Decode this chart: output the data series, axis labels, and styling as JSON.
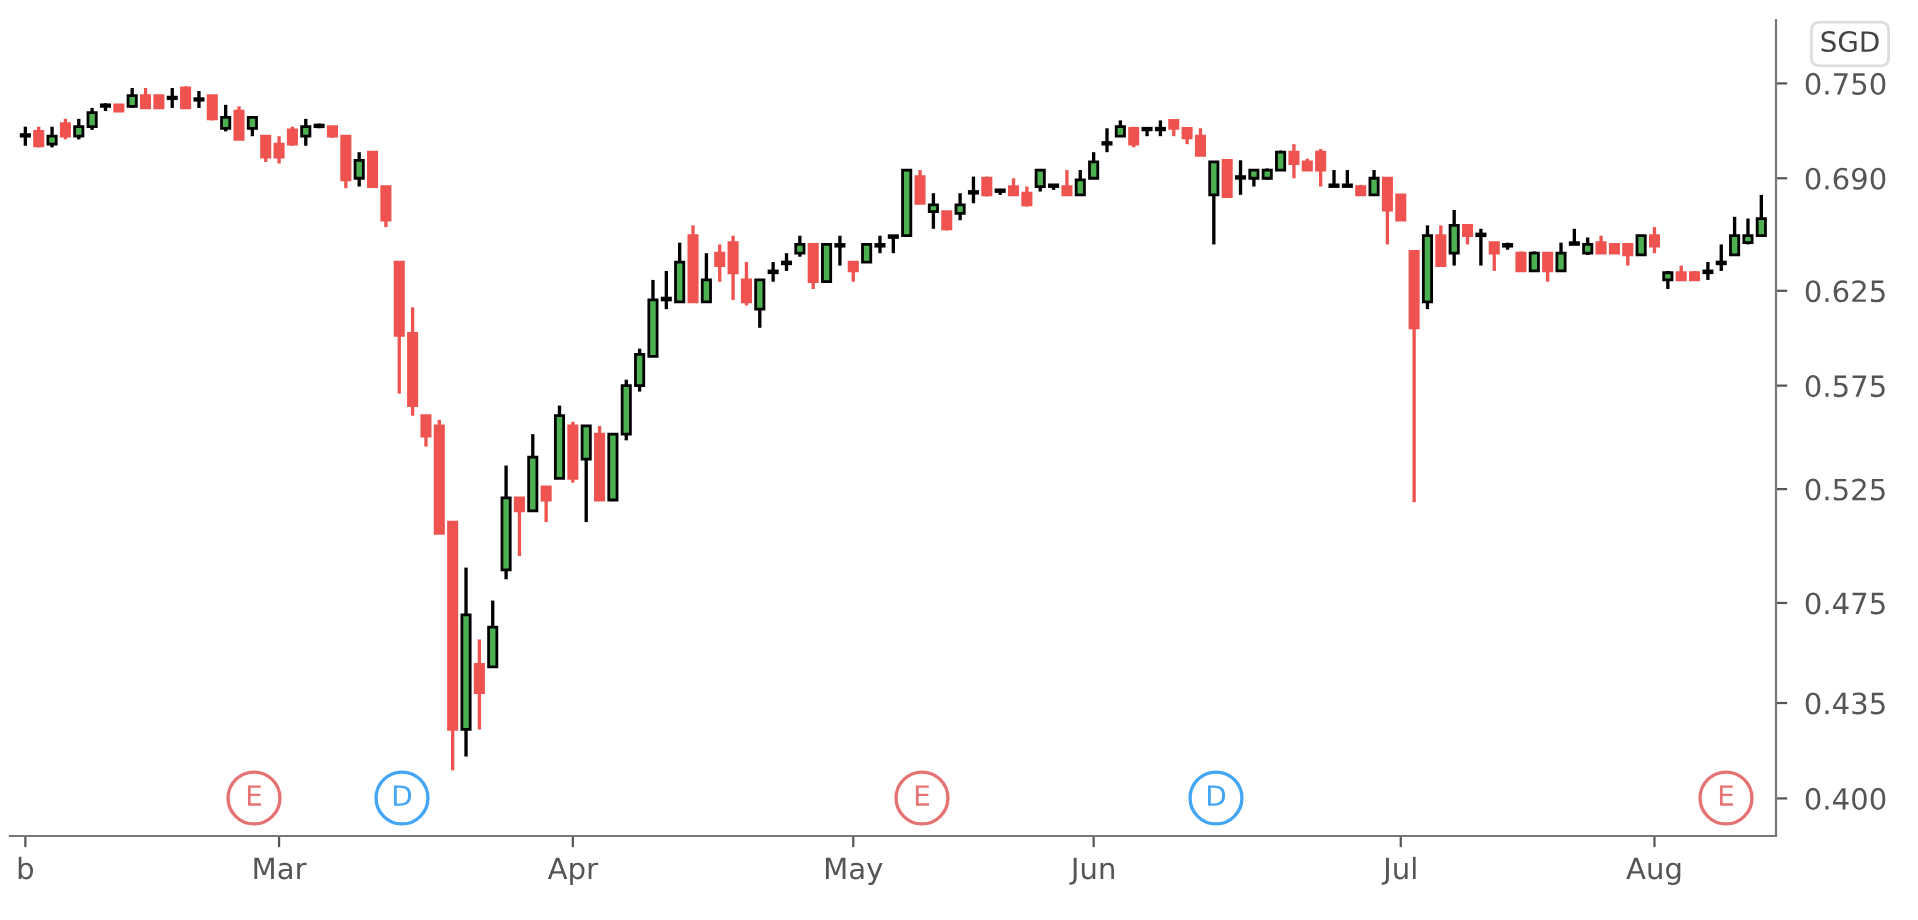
{
  "chart_data": {
    "type": "candlestick",
    "categories": [
      "b",
      null,
      null,
      null,
      null,
      null,
      null,
      null,
      null,
      null,
      null,
      null,
      null,
      null,
      null,
      null,
      null,
      null,
      null,
      "Mar",
      null,
      null,
      null,
      null,
      null,
      null,
      null,
      null,
      null,
      null,
      null,
      null,
      null,
      null,
      null,
      null,
      null,
      null,
      null,
      null,
      null,
      "Apr",
      null,
      null,
      null,
      null,
      null,
      null,
      null,
      null,
      null,
      null,
      null,
      null,
      null,
      null,
      null,
      null,
      null,
      null,
      null,
      null,
      "May",
      null,
      null,
      null,
      null,
      null,
      null,
      null,
      null,
      null,
      null,
      null,
      null,
      null,
      null,
      null,
      null,
      null,
      "Jun",
      null,
      null,
      null,
      null,
      null,
      null,
      null,
      null,
      null,
      null,
      null,
      null,
      null,
      null,
      null,
      null,
      null,
      null,
      null,
      null,
      null,
      null,
      "Jul",
      null,
      null,
      null,
      null,
      null,
      null,
      null,
      null,
      null,
      null,
      null,
      null,
      null,
      null,
      null,
      null,
      null,
      null,
      "Aug",
      null,
      null,
      null,
      null,
      null,
      null,
      null,
      null
    ],
    "ohlc": [
      [
        0.716,
        0.722,
        0.71,
        0.717
      ],
      [
        0.719,
        0.722,
        0.709,
        0.71
      ],
      [
        0.711,
        0.722,
        0.709,
        0.716
      ],
      [
        0.724,
        0.727,
        0.714,
        0.716
      ],
      [
        0.716,
        0.727,
        0.714,
        0.722
      ],
      [
        0.722,
        0.734,
        0.72,
        0.731
      ],
      [
        0.735,
        0.737,
        0.732,
        0.736
      ],
      [
        0.736,
        0.736,
        0.732,
        0.732
      ],
      [
        0.735,
        0.747,
        0.734,
        0.742
      ],
      [
        0.742,
        0.747,
        0.734,
        0.734
      ],
      [
        0.742,
        0.742,
        0.734,
        0.734
      ],
      [
        0.74,
        0.747,
        0.734,
        0.741
      ],
      [
        0.747,
        0.748,
        0.734,
        0.734
      ],
      [
        0.739,
        0.745,
        0.734,
        0.74
      ],
      [
        0.742,
        0.742,
        0.726,
        0.727
      ],
      [
        0.721,
        0.736,
        0.719,
        0.728
      ],
      [
        0.732,
        0.735,
        0.714,
        0.714
      ],
      [
        0.721,
        0.728,
        0.716,
        0.728
      ],
      [
        0.716,
        0.716,
        0.7,
        0.703
      ],
      [
        0.711,
        0.716,
        0.699,
        0.703
      ],
      [
        0.72,
        0.722,
        0.71,
        0.711
      ],
      [
        0.716,
        0.727,
        0.71,
        0.722
      ],
      [
        0.722,
        0.724,
        0.721,
        0.723
      ],
      [
        0.722,
        0.722,
        0.715,
        0.716
      ],
      [
        0.716,
        0.716,
        0.684,
        0.689
      ],
      [
        0.69,
        0.706,
        0.685,
        0.701
      ],
      [
        0.706,
        0.706,
        0.685,
        0.685
      ],
      [
        0.685,
        0.685,
        0.661,
        0.665
      ],
      [
        0.641,
        0.641,
        0.571,
        0.601
      ],
      [
        0.602,
        0.616,
        0.56,
        0.565
      ],
      [
        0.56,
        0.56,
        0.545,
        0.55
      ],
      [
        0.555,
        0.558,
        0.505,
        0.505
      ],
      [
        0.51,
        0.51,
        0.41,
        0.425
      ],
      [
        0.425,
        0.49,
        0.415,
        0.47
      ],
      [
        0.45,
        0.46,
        0.425,
        0.439
      ],
      [
        0.449,
        0.476,
        0.449,
        0.465
      ],
      [
        0.489,
        0.536,
        0.485,
        0.521
      ],
      [
        0.521,
        0.521,
        0.495,
        0.515
      ],
      [
        0.515,
        0.551,
        0.515,
        0.54
      ],
      [
        0.526,
        0.526,
        0.51,
        0.52
      ],
      [
        0.53,
        0.565,
        0.53,
        0.56
      ],
      [
        0.555,
        0.557,
        0.528,
        0.53
      ],
      [
        0.539,
        0.555,
        0.51,
        0.555
      ],
      [
        0.551,
        0.555,
        0.52,
        0.52
      ],
      [
        0.52,
        0.551,
        0.52,
        0.551
      ],
      [
        0.551,
        0.578,
        0.548,
        0.575
      ],
      [
        0.575,
        0.594,
        0.572,
        0.591
      ],
      [
        0.59,
        0.631,
        0.59,
        0.62
      ],
      [
        0.62,
        0.636,
        0.615,
        0.621
      ],
      [
        0.619,
        0.652,
        0.619,
        0.641
      ],
      [
        0.656,
        0.662,
        0.619,
        0.619
      ],
      [
        0.619,
        0.646,
        0.619,
        0.631
      ],
      [
        0.646,
        0.651,
        0.63,
        0.639
      ],
      [
        0.652,
        0.656,
        0.62,
        0.635
      ],
      [
        0.631,
        0.641,
        0.617,
        0.619
      ],
      [
        0.615,
        0.631,
        0.605,
        0.631
      ],
      [
        0.635,
        0.641,
        0.63,
        0.636
      ],
      [
        0.64,
        0.646,
        0.636,
        0.641
      ],
      [
        0.646,
        0.656,
        0.644,
        0.651
      ],
      [
        0.651,
        0.651,
        0.626,
        0.63
      ],
      [
        0.63,
        0.651,
        0.63,
        0.651
      ],
      [
        0.65,
        0.656,
        0.639,
        0.651
      ],
      [
        0.641,
        0.641,
        0.63,
        0.636
      ],
      [
        0.641,
        0.651,
        0.641,
        0.651
      ],
      [
        0.65,
        0.656,
        0.646,
        0.651
      ],
      [
        0.655,
        0.656,
        0.646,
        0.656
      ],
      [
        0.656,
        0.695,
        0.656,
        0.695
      ],
      [
        0.691,
        0.695,
        0.675,
        0.675
      ],
      [
        0.67,
        0.681,
        0.66,
        0.674
      ],
      [
        0.67,
        0.67,
        0.659,
        0.66
      ],
      [
        0.669,
        0.681,
        0.665,
        0.674
      ],
      [
        0.681,
        0.691,
        0.675,
        0.682
      ],
      [
        0.69,
        0.691,
        0.679,
        0.68
      ],
      [
        0.682,
        0.683,
        0.68,
        0.683
      ],
      [
        0.685,
        0.69,
        0.68,
        0.68
      ],
      [
        0.681,
        0.685,
        0.673,
        0.674
      ],
      [
        0.685,
        0.695,
        0.682,
        0.695
      ],
      [
        0.685,
        0.686,
        0.683,
        0.686
      ],
      [
        0.685,
        0.695,
        0.68,
        0.68
      ],
      [
        0.68,
        0.695,
        0.68,
        0.689
      ],
      [
        0.69,
        0.706,
        0.69,
        0.7
      ],
      [
        0.711,
        0.721,
        0.706,
        0.712
      ],
      [
        0.716,
        0.726,
        0.716,
        0.722
      ],
      [
        0.721,
        0.722,
        0.709,
        0.711
      ],
      [
        0.72,
        0.721,
        0.716,
        0.721
      ],
      [
        0.72,
        0.726,
        0.716,
        0.721
      ],
      [
        0.726,
        0.726,
        0.716,
        0.721
      ],
      [
        0.721,
        0.721,
        0.711,
        0.715
      ],
      [
        0.716,
        0.721,
        0.704,
        0.704
      ],
      [
        0.68,
        0.7,
        0.651,
        0.7
      ],
      [
        0.701,
        0.701,
        0.679,
        0.679
      ],
      [
        0.69,
        0.701,
        0.68,
        0.691
      ],
      [
        0.69,
        0.695,
        0.685,
        0.695
      ],
      [
        0.69,
        0.696,
        0.689,
        0.695
      ],
      [
        0.695,
        0.707,
        0.695,
        0.706
      ],
      [
        0.706,
        0.711,
        0.69,
        0.699
      ],
      [
        0.7,
        0.702,
        0.695,
        0.695
      ],
      [
        0.706,
        0.708,
        0.685,
        0.695
      ],
      [
        0.685,
        0.695,
        0.685,
        0.686
      ],
      [
        0.685,
        0.695,
        0.685,
        0.686
      ],
      [
        0.685,
        0.686,
        0.68,
        0.68
      ],
      [
        0.68,
        0.695,
        0.68,
        0.69
      ],
      [
        0.69,
        0.69,
        0.651,
        0.671
      ],
      [
        0.68,
        0.68,
        0.665,
        0.665
      ],
      [
        0.647,
        0.647,
        0.519,
        0.605
      ],
      [
        0.619,
        0.662,
        0.615,
        0.656
      ],
      [
        0.656,
        0.662,
        0.639,
        0.639
      ],
      [
        0.646,
        0.671,
        0.639,
        0.662
      ],
      [
        0.662,
        0.662,
        0.651,
        0.656
      ],
      [
        0.656,
        0.66,
        0.639,
        0.657
      ],
      [
        0.652,
        0.652,
        0.636,
        0.646
      ],
      [
        0.65,
        0.652,
        0.648,
        0.651
      ],
      [
        0.646,
        0.647,
        0.636,
        0.636
      ],
      [
        0.636,
        0.647,
        0.636,
        0.646
      ],
      [
        0.646,
        0.646,
        0.63,
        0.636
      ],
      [
        0.636,
        0.652,
        0.636,
        0.646
      ],
      [
        0.651,
        0.66,
        0.651,
        0.652
      ],
      [
        0.646,
        0.655,
        0.645,
        0.651
      ],
      [
        0.652,
        0.656,
        0.646,
        0.646
      ],
      [
        0.651,
        0.651,
        0.646,
        0.646
      ],
      [
        0.651,
        0.651,
        0.639,
        0.645
      ],
      [
        0.645,
        0.656,
        0.645,
        0.656
      ],
      [
        0.656,
        0.661,
        0.646,
        0.65
      ],
      [
        0.631,
        0.636,
        0.626,
        0.635
      ],
      [
        0.635,
        0.639,
        0.631,
        0.631
      ],
      [
        0.635,
        0.636,
        0.631,
        0.631
      ],
      [
        0.635,
        0.641,
        0.631,
        0.636
      ],
      [
        0.64,
        0.651,
        0.636,
        0.641
      ],
      [
        0.645,
        0.667,
        0.645,
        0.656
      ],
      [
        0.652,
        0.666,
        0.651,
        0.656
      ],
      [
        0.656,
        0.68,
        0.656,
        0.666
      ]
    ],
    "colors": [
      "#4caf50",
      "#ef5350",
      "#4caf50",
      "#ef5350",
      "#4caf50",
      "#4caf50",
      "#4caf50",
      "#ef5350",
      "#4caf50",
      "#ef5350",
      "#ef5350",
      "#4caf50",
      "#ef5350",
      "#4caf50",
      "#ef5350",
      "#4caf50",
      "#ef5350",
      "#4caf50",
      "#ef5350",
      "#ef5350",
      "#ef5350",
      "#4caf50",
      "#4caf50",
      "#ef5350",
      "#ef5350",
      "#4caf50",
      "#ef5350",
      "#ef5350",
      "#ef5350",
      "#ef5350",
      "#ef5350",
      "#ef5350",
      "#ef5350",
      "#4caf50",
      "#ef5350",
      "#4caf50",
      "#4caf50",
      "#ef5350",
      "#4caf50",
      "#ef5350",
      "#4caf50",
      "#ef5350",
      "#4caf50",
      "#ef5350",
      "#4caf50",
      "#4caf50",
      "#4caf50",
      "#4caf50",
      "#4caf50",
      "#4caf50",
      "#ef5350",
      "#4caf50",
      "#ef5350",
      "#ef5350",
      "#ef5350",
      "#4caf50",
      "#4caf50",
      "#4caf50",
      "#4caf50",
      "#ef5350",
      "#4caf50",
      "#4caf50",
      "#ef5350",
      "#4caf50",
      "#4caf50",
      "#4caf50",
      "#4caf50",
      "#ef5350",
      "#4caf50",
      "#ef5350",
      "#4caf50",
      "#4caf50",
      "#ef5350",
      "#4caf50",
      "#ef5350",
      "#ef5350",
      "#4caf50",
      "#4caf50",
      "#ef5350",
      "#4caf50",
      "#4caf50",
      "#4caf50",
      "#4caf50",
      "#ef5350",
      "#4caf50",
      "#4caf50",
      "#ef5350",
      "#ef5350",
      "#ef5350",
      "#4caf50",
      "#ef5350",
      "#4caf50",
      "#4caf50",
      "#4caf50",
      "#4caf50",
      "#ef5350",
      "#ef5350",
      "#ef5350",
      "#4caf50",
      "#4caf50",
      "#ef5350",
      "#4caf50",
      "#ef5350",
      "#ef5350",
      "#ef5350",
      "#4caf50",
      "#ef5350",
      "#4caf50",
      "#ef5350",
      "#4caf50",
      "#ef5350",
      "#4caf50",
      "#ef5350",
      "#4caf50",
      "#ef5350",
      "#4caf50",
      "#4caf50",
      "#4caf50",
      "#ef5350",
      "#ef5350",
      "#ef5350",
      "#4caf50",
      "#ef5350",
      "#4caf50",
      "#ef5350",
      "#ef5350",
      "#4caf50",
      "#4caf50",
      "#4caf50",
      "#4caf50",
      "#4caf50"
    ],
    "log": true,
    "ylim": [
      0.387,
      0.793
    ],
    "yticks": [
      {
        "value": 0.75,
        "label": "0.750"
      },
      {
        "value": 0.69,
        "label": "0.690"
      },
      0.625,
      0.575,
      0.525,
      0.475,
      0.435,
      {
        "value": 0.4,
        "label": "0.400"
      }
    ],
    "annotations": [
      "SGD",
      "E",
      "D",
      "E",
      "D",
      "E"
    ]
  }
}
